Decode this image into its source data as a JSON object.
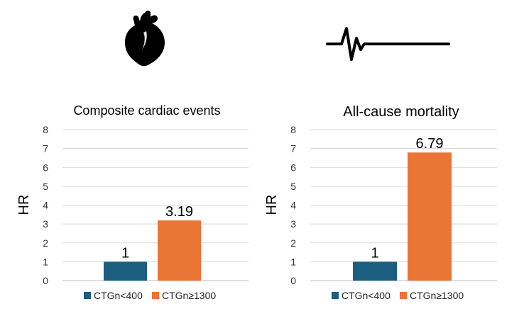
{
  "colors": {
    "navy": "#1b5e80",
    "orange": "#ea7535",
    "grid": "#d9d9d9"
  },
  "icons": [
    "heart-icon",
    "ecg-pulse-icon"
  ],
  "chart_data": [
    {
      "type": "bar",
      "title": "Composite cardiac events",
      "ylabel": "HR",
      "xlabel": "",
      "ylim": [
        0,
        8
      ],
      "yticks": [
        "0",
        "1",
        "2",
        "3",
        "4",
        "5",
        "6",
        "7",
        "8"
      ],
      "grid": true,
      "legend_position": "bottom",
      "series": [
        {
          "name": "CTGn<400",
          "color": "#1b5e80",
          "values": [
            1
          ],
          "label": "1"
        },
        {
          "name": "CTGn≥1300",
          "color": "#ea7535",
          "values": [
            3.19
          ],
          "label": "3.19"
        }
      ]
    },
    {
      "type": "bar",
      "title": "All-cause mortality",
      "ylabel": "HR",
      "xlabel": "",
      "ylim": [
        0,
        8
      ],
      "yticks": [
        "0",
        "1",
        "2",
        "3",
        "4",
        "5",
        "6",
        "7",
        "8"
      ],
      "grid": true,
      "legend_position": "bottom",
      "series": [
        {
          "name": "CTGn<400",
          "color": "#1b5e80",
          "values": [
            1
          ],
          "label": "1"
        },
        {
          "name": "CTGn≥1300",
          "color": "#ea7535",
          "values": [
            6.79
          ],
          "label": "6.79"
        }
      ]
    }
  ]
}
